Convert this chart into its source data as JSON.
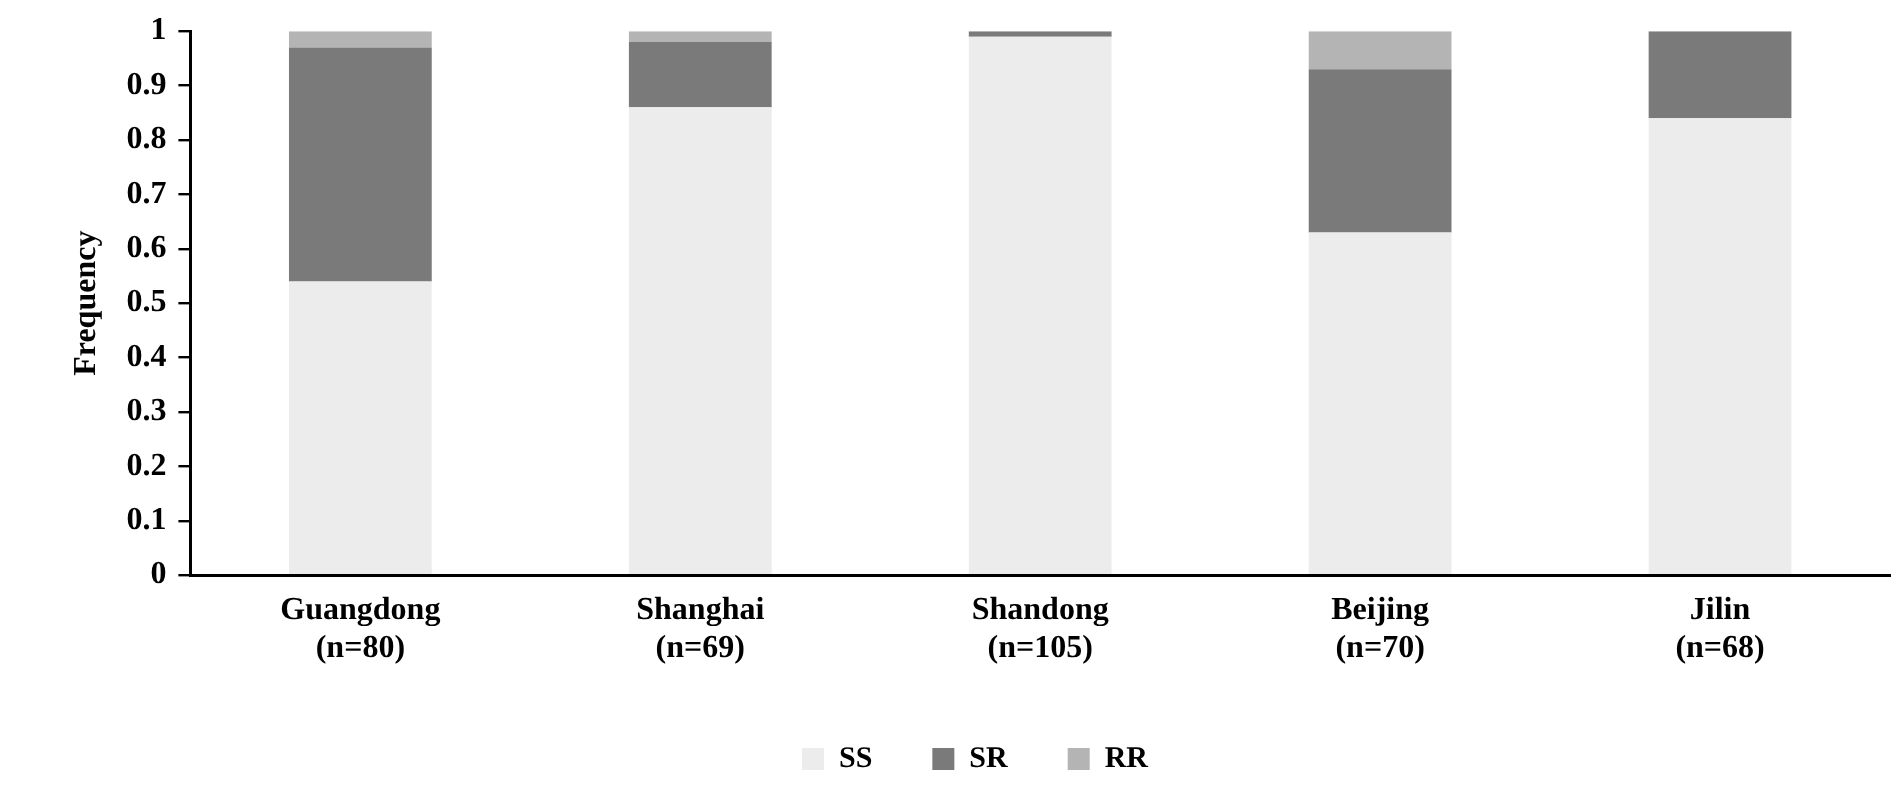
{
  "chart_data": {
    "type": "bar",
    "stacked": true,
    "ylabel": "Frequency",
    "categories": [
      "Guangdong\n(n=80)",
      "Shanghai\n(n=69)",
      "Shandong\n(n=105)",
      "Beijing\n(n=70)",
      "Jilin\n(n=68)"
    ],
    "series": [
      {
        "name": "SS",
        "color": "#ececec",
        "values": [
          0.54,
          0.86,
          0.99,
          0.63,
          0.84
        ]
      },
      {
        "name": "SR",
        "color": "#7a7a7a",
        "values": [
          0.43,
          0.12,
          0.01,
          0.3,
          0.16
        ]
      },
      {
        "name": "RR",
        "color": "#b4b4b4",
        "values": [
          0.03,
          0.02,
          0,
          0.07,
          0
        ]
      }
    ],
    "ylim": [
      0,
      1
    ],
    "yticks": [
      0,
      0.1,
      0.2,
      0.3,
      0.4,
      0.5,
      0.6,
      0.7,
      0.8,
      0.9,
      1
    ],
    "grid": false,
    "legend": "bottom"
  }
}
